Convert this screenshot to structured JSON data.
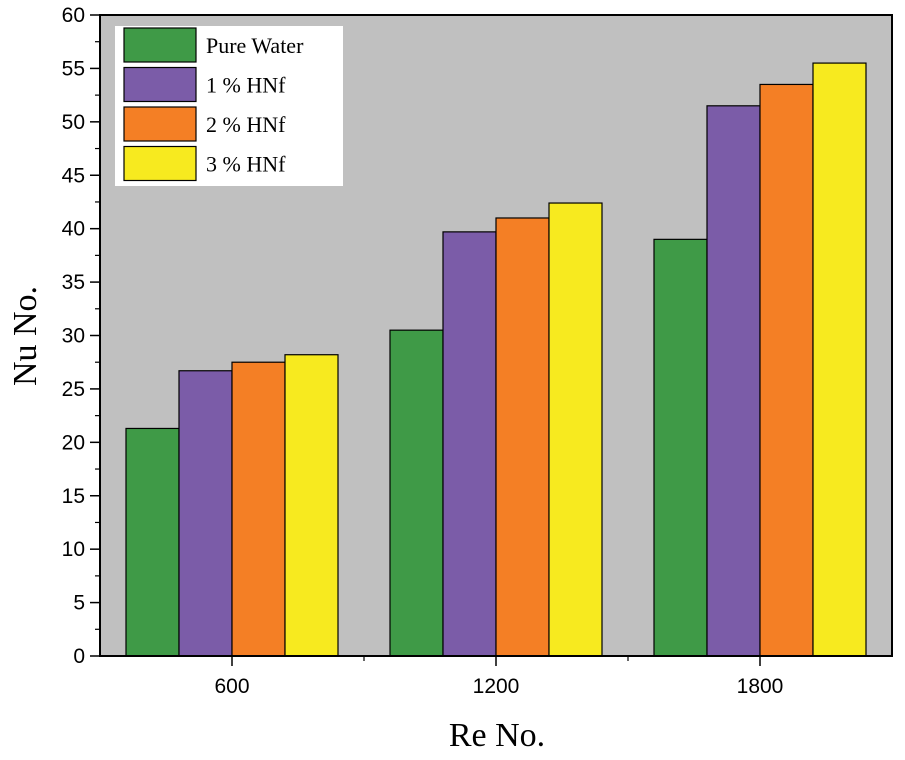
{
  "chart_data": {
    "type": "bar",
    "title": "",
    "xlabel": "Re No.",
    "ylabel": "Nu No.",
    "categories": [
      "600",
      "1200",
      "1800"
    ],
    "ylim": [
      0,
      60
    ],
    "yticks": [
      "0",
      "5",
      "10",
      "15",
      "20",
      "25",
      "30",
      "35",
      "40",
      "45",
      "50",
      "55",
      "60"
    ],
    "grid": false,
    "legend_position": "top-left",
    "background_color": "#c0c0c0",
    "series": [
      {
        "name": "Pure Water",
        "color": "#3f9a47",
        "values": [
          21.3,
          30.5,
          39.0
        ]
      },
      {
        "name": "1 % HNf",
        "color": "#7b5ca8",
        "values": [
          26.7,
          39.7,
          51.5
        ]
      },
      {
        "name": "2 % HNf",
        "color": "#f47f25",
        "values": [
          27.5,
          41.0,
          53.5
        ]
      },
      {
        "name": "3 % HNf",
        "color": "#f7ea1f",
        "values": [
          28.2,
          42.4,
          55.5
        ]
      }
    ]
  }
}
